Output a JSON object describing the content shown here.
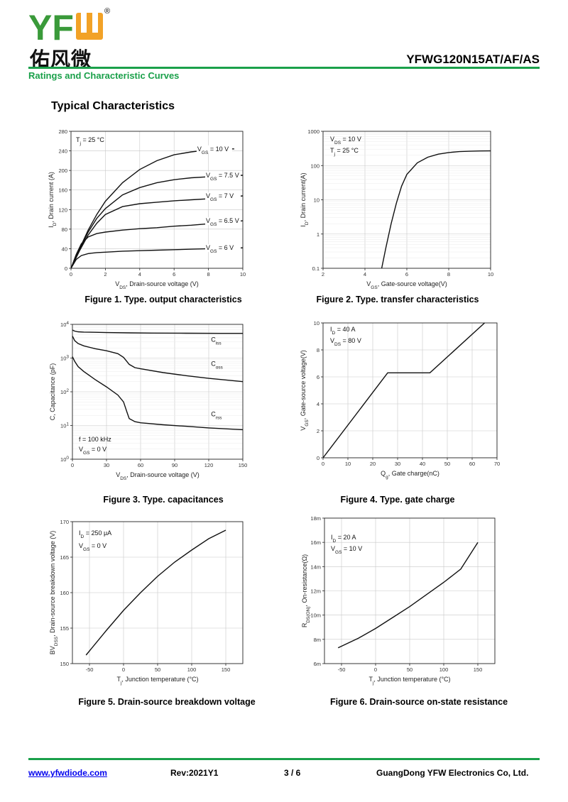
{
  "header": {
    "logo_text": "YFW",
    "logo_cn": "佑风微",
    "registered_mark": "®",
    "part_number": "YFWG120N15AT/AF/AS",
    "subtitle": "Ratings and Characteristic Curves",
    "section_title": "Typical Characteristics"
  },
  "colors": {
    "accent": "#1aa04a",
    "logo_green": "#3a9a3a",
    "logo_orange": "#f2a227"
  },
  "footer": {
    "website": "www.yfwdiode.com",
    "revision": "Rev:2021Y1",
    "page": "3 / 6",
    "company": "GuangDong YFW Electronics Co, Ltd."
  },
  "figures": [
    {
      "caption": "Figure 1. Type. output characteristics",
      "chart_data": {
        "type": "line",
        "xlabel": "V_DS, Drain-source voltage (V)",
        "ylabel": "I_D, Drain current (A)",
        "xlim": [
          0,
          10
        ],
        "ylim": [
          0,
          280
        ],
        "xticks": [
          "0",
          "2",
          "4",
          "6",
          "8",
          "10"
        ],
        "yticks": [
          "0",
          "40",
          "80",
          "120",
          "160",
          "200",
          "240",
          "280"
        ],
        "annotations": [
          "T_j = 25 °C"
        ],
        "series": [
          {
            "name": "V_GS = 10 V",
            "x": [
              0,
              0.5,
              1,
              1.5,
              2,
              3,
              4,
              5,
              6,
              7,
              8,
              9,
              9.5
            ],
            "y": [
              0,
              40,
              78,
              110,
              137,
              175,
              202,
              220,
              232,
              238,
              242,
              244,
              244
            ]
          },
          {
            "name": "V_GS = 7.5 V",
            "x": [
              0,
              0.5,
              1,
              1.5,
              2,
              3,
              4,
              5,
              6,
              7,
              8,
              9,
              10
            ],
            "y": [
              0,
              38,
              74,
              102,
              122,
              150,
              165,
              175,
              181,
              185,
              187,
              189,
              190
            ]
          },
          {
            "name": "V_GS = 7 V",
            "x": [
              0,
              0.5,
              1,
              1.5,
              2,
              3,
              4,
              5,
              6,
              7,
              8,
              9,
              10
            ],
            "y": [
              0,
              36,
              68,
              92,
              110,
              126,
              132,
              135,
              138,
              140,
              142,
              145,
              148
            ]
          },
          {
            "name": "V_GS = 6.5 V",
            "x": [
              0,
              0.3,
              0.6,
              1,
              1.5,
              2,
              3,
              4,
              5,
              6,
              7,
              8,
              9,
              10
            ],
            "y": [
              0,
              28,
              50,
              64,
              71,
              74,
              78,
              81,
              83,
              86,
              88,
              91,
              94,
              97
            ]
          },
          {
            "name": "V_GS = 6 V",
            "x": [
              0,
              0.3,
              0.6,
              1,
              1.5,
              2,
              3,
              4,
              5,
              6,
              7,
              8,
              9,
              10
            ],
            "y": [
              0,
              18,
              26,
              30,
              32,
              33,
              35,
              36,
              37,
              38,
              39,
              40,
              41,
              42
            ]
          }
        ]
      }
    },
    {
      "caption": "Figure 2. Type. transfer characteristics",
      "chart_data": {
        "type": "line",
        "xlabel": "V_GS, Gate-source voltage(V)",
        "ylabel": "I_D, Drain current(A)",
        "xlim": [
          2,
          10
        ],
        "ylim": [
          0.1,
          1000
        ],
        "yscale": "log",
        "xticks": [
          "2",
          "4",
          "6",
          "8",
          "10"
        ],
        "yticks": [
          "0.1",
          "1",
          "10",
          "100",
          "1000"
        ],
        "annotations": [
          "V_DS = 10 V",
          "T_j = 25 °C"
        ],
        "series": [
          {
            "name": "",
            "x": [
              4.8,
              5,
              5.25,
              5.5,
              5.75,
              6,
              6.5,
              7,
              7.5,
              8,
              8.5,
              9,
              9.5,
              10
            ],
            "y": [
              0.1,
              0.4,
              2,
              8,
              25,
              55,
              120,
              175,
              215,
              240,
              255,
              262,
              266,
              268
            ]
          }
        ]
      }
    },
    {
      "caption": "Figure 3. Type. capacitances",
      "chart_data": {
        "type": "line",
        "xlabel": "V_DS, Drain-source voltage (V)",
        "ylabel": "C, Capacitance (pF)",
        "xlim": [
          0,
          150
        ],
        "ylim": [
          1,
          10000
        ],
        "yscale": "log",
        "xticks": [
          "0",
          "30",
          "60",
          "90",
          "120",
          "150"
        ],
        "yticks": [
          "10^0",
          "10^1",
          "10^2",
          "10^3",
          "10^4"
        ],
        "annotations": [
          "f = 100 kHz",
          "V_GS = 0 V"
        ],
        "series": [
          {
            "name": "C_iss",
            "x": [
              0,
              2,
              5,
              10,
              20,
              30,
              50,
              70,
              100,
              130,
              150
            ],
            "y": [
              6800,
              6300,
              6000,
              5900,
              5800,
              5700,
              5600,
              5500,
              5450,
              5400,
              5400
            ]
          },
          {
            "name": "C_oss",
            "x": [
              0,
              2,
              5,
              10,
              20,
              30,
              40,
              45,
              50,
              55,
              60,
              80,
              100,
              120,
              150
            ],
            "y": [
              4500,
              3300,
              2700,
              2300,
              1900,
              1650,
              1350,
              1050,
              650,
              520,
              480,
              370,
              300,
              250,
              200
            ]
          },
          {
            "name": "C_rss",
            "x": [
              0,
              2,
              5,
              10,
              20,
              30,
              40,
              45,
              48,
              50,
              55,
              60,
              80,
              100,
              120,
              150
            ],
            "y": [
              1100,
              800,
              560,
              400,
              230,
              140,
              80,
              50,
              25,
              16,
              13,
              12,
              10.5,
              9.5,
              8.5,
              7.5
            ]
          }
        ]
      }
    },
    {
      "caption": "Figure 4. Type. gate charge",
      "chart_data": {
        "type": "line",
        "xlabel": "Q_g, Gate charge(nC)",
        "ylabel": "V_GS, Gate-source voltage(V)",
        "xlim": [
          0,
          70
        ],
        "ylim": [
          0,
          10
        ],
        "xticks": [
          "0",
          "10",
          "20",
          "30",
          "40",
          "50",
          "60",
          "70"
        ],
        "yticks": [
          "0",
          "2",
          "4",
          "6",
          "8",
          "10"
        ],
        "annotations": [
          "I_D = 40 A",
          "V_DS = 80 V"
        ],
        "series": [
          {
            "name": "",
            "x": [
              0,
              26,
              43,
              65
            ],
            "y": [
              0,
              6.3,
              6.3,
              10
            ]
          }
        ]
      }
    },
    {
      "caption": "Figure 5. Drain-source breakdown voltage",
      "chart_data": {
        "type": "line",
        "xlabel": "T_j, Junction temperature (°C)",
        "ylabel": "BV_DSS, Drain-source breakdown voltage (V)",
        "xlim": [
          -75,
          175
        ],
        "ylim": [
          150,
          170
        ],
        "xticks": [
          "-50",
          "0",
          "50",
          "100",
          "150"
        ],
        "yticks": [
          "150",
          "155",
          "160",
          "165",
          "170"
        ],
        "annotations": [
          "I_D = 250 μA",
          "V_GS = 0 V"
        ],
        "series": [
          {
            "name": "",
            "x": [
              -55,
              -25,
              0,
              25,
              50,
              75,
              100,
              125,
              150
            ],
            "y": [
              151.2,
              154.7,
              157.5,
              160,
              162.3,
              164.3,
              166,
              167.6,
              168.8
            ]
          }
        ]
      }
    },
    {
      "caption": "Figure 6. Drain-source on-state resistance",
      "chart_data": {
        "type": "line",
        "xlabel": "T_j, Junction temperature (°C)",
        "ylabel": "R_DS(ON), On-resistance(Ω)",
        "xlim": [
          -75,
          175
        ],
        "ylim": [
          0.006,
          0.018
        ],
        "xticks": [
          "-50",
          "0",
          "50",
          "100",
          "150"
        ],
        "yticks": [
          "6m",
          "8m",
          "10m",
          "12m",
          "14m",
          "16m",
          "18m"
        ],
        "annotations": [
          "I_D = 20 A",
          "V_GS = 10 V"
        ],
        "series": [
          {
            "name": "",
            "x": [
              -55,
              -25,
              0,
              25,
              50,
              75,
              100,
              125,
              150
            ],
            "y": [
              0.0073,
              0.0081,
              0.0089,
              0.0098,
              0.0107,
              0.0117,
              0.0127,
              0.0138,
              0.016
            ]
          }
        ]
      }
    }
  ]
}
